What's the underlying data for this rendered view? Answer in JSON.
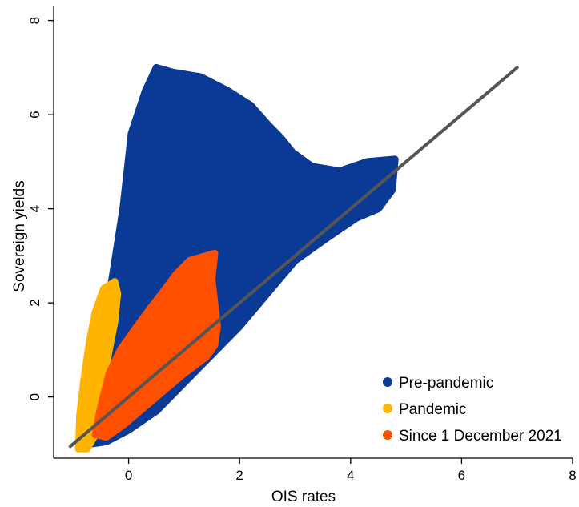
{
  "chart_data": {
    "type": "scatter",
    "title": "",
    "xlabel": "OIS rates",
    "ylabel": "Sovereign yields",
    "xlim": [
      -1.35,
      8
    ],
    "ylim": [
      -1.3,
      8.3
    ],
    "x_ticks": [
      0,
      2,
      4,
      6,
      8
    ],
    "y_ticks": [
      0,
      2,
      4,
      6,
      8
    ],
    "x_tick_labels": [
      "0",
      "2",
      "4",
      "6",
      "8"
    ],
    "y_tick_labels": [
      "0",
      "2",
      "4",
      "6",
      "8"
    ],
    "grid": false,
    "legend_position": "bottom-right",
    "series": [
      {
        "name": "Pre-pandemic",
        "color": "#0a3a96",
        "region": [
          [
            -0.85,
            -0.9
          ],
          [
            -0.8,
            -0.2
          ],
          [
            -0.6,
            1.0
          ],
          [
            -0.3,
            2.5
          ],
          [
            -0.1,
            4.0
          ],
          [
            0.05,
            5.6
          ],
          [
            0.3,
            6.5
          ],
          [
            0.5,
            7.0
          ],
          [
            0.8,
            6.9
          ],
          [
            1.3,
            6.8
          ],
          [
            1.8,
            6.5
          ],
          [
            2.2,
            6.2
          ],
          [
            2.5,
            5.8
          ],
          [
            2.75,
            5.5
          ],
          [
            2.95,
            5.2
          ],
          [
            3.3,
            4.9
          ],
          [
            3.8,
            4.8
          ],
          [
            4.3,
            5.0
          ],
          [
            4.8,
            5.05
          ],
          [
            4.75,
            4.4
          ],
          [
            4.5,
            4.0
          ],
          [
            4.1,
            3.8
          ],
          [
            3.6,
            3.4
          ],
          [
            3.0,
            2.9
          ],
          [
            2.5,
            2.2
          ],
          [
            2.0,
            1.5
          ],
          [
            1.5,
            0.9
          ],
          [
            1.0,
            0.3
          ],
          [
            0.5,
            -0.3
          ],
          [
            0.0,
            -0.7
          ],
          [
            -0.4,
            -0.95
          ],
          [
            -0.7,
            -1.0
          ]
        ]
      },
      {
        "name": "Pandemic",
        "color": "#ffb400",
        "region": [
          [
            -0.9,
            -1.1
          ],
          [
            -0.88,
            -0.4
          ],
          [
            -0.8,
            0.4
          ],
          [
            -0.7,
            1.2
          ],
          [
            -0.6,
            1.8
          ],
          [
            -0.45,
            2.3
          ],
          [
            -0.25,
            2.45
          ],
          [
            -0.2,
            2.2
          ],
          [
            -0.25,
            1.6
          ],
          [
            -0.35,
            1.0
          ],
          [
            -0.45,
            0.3
          ],
          [
            -0.55,
            -0.3
          ],
          [
            -0.6,
            -0.8
          ],
          [
            -0.75,
            -1.1
          ]
        ]
      },
      {
        "name": "Since 1 December 2021",
        "color": "#ff5000",
        "region": [
          [
            -0.6,
            -0.8
          ],
          [
            -0.5,
            -0.2
          ],
          [
            -0.35,
            0.5
          ],
          [
            -0.15,
            1.0
          ],
          [
            0.15,
            1.5
          ],
          [
            0.4,
            1.9
          ],
          [
            0.6,
            2.2
          ],
          [
            0.85,
            2.6
          ],
          [
            1.1,
            2.9
          ],
          [
            1.25,
            2.95
          ],
          [
            1.55,
            3.05
          ],
          [
            1.5,
            2.5
          ],
          [
            1.55,
            2.0
          ],
          [
            1.6,
            1.5
          ],
          [
            1.55,
            1.1
          ],
          [
            1.4,
            0.85
          ],
          [
            1.0,
            0.5
          ],
          [
            0.6,
            0.1
          ],
          [
            0.2,
            -0.3
          ],
          [
            -0.1,
            -0.6
          ],
          [
            -0.4,
            -0.85
          ]
        ]
      }
    ],
    "reference_line": {
      "x": [
        -1.05,
        7.0
      ],
      "y": [
        -1.05,
        7.0
      ],
      "color": "#555555"
    }
  }
}
